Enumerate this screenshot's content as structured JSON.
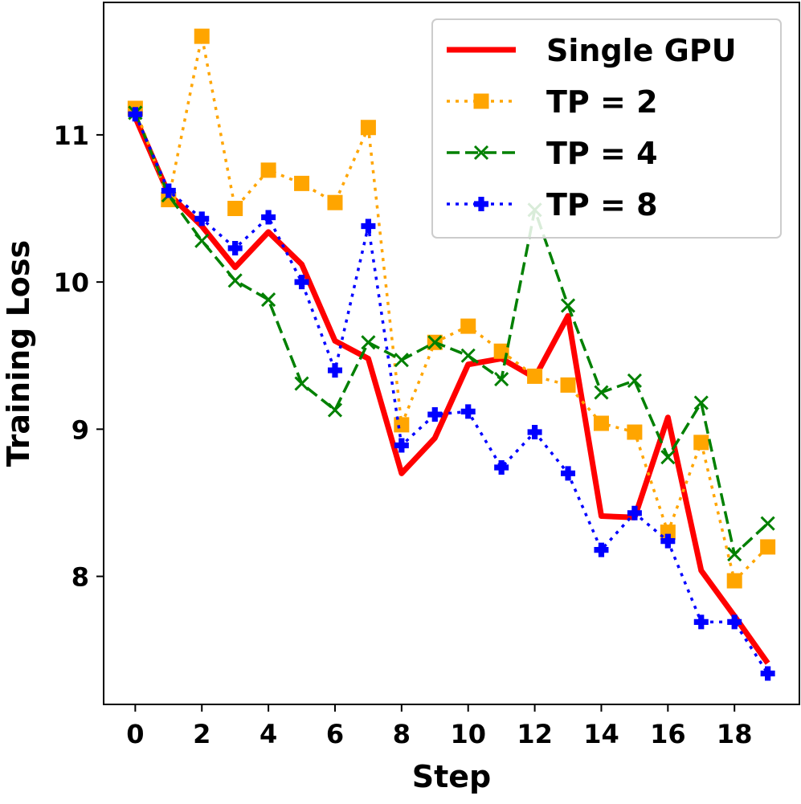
{
  "chart_data": {
    "type": "line",
    "title": "",
    "xlabel": "Step",
    "ylabel": "Training Loss",
    "xlim": [
      -0.95,
      19.95
    ],
    "ylim": [
      7.13,
      11.9
    ],
    "xticks": [
      0,
      2,
      4,
      6,
      8,
      10,
      12,
      14,
      16,
      18
    ],
    "xtick_labels": [
      "0",
      "2",
      "4",
      "6",
      "8",
      "10",
      "12",
      "14",
      "16",
      "18"
    ],
    "yticks": [
      8,
      9,
      10,
      11
    ],
    "ytick_labels": [
      "8",
      "9",
      "10",
      "11"
    ],
    "grid": false,
    "legend_position": "upper right",
    "x": [
      0,
      1,
      2,
      3,
      4,
      5,
      6,
      7,
      8,
      9,
      10,
      11,
      12,
      13,
      14,
      15,
      16,
      17,
      18,
      19
    ],
    "series": [
      {
        "name": "Single GPU",
        "color": "#ff0000",
        "line_style": "solid",
        "marker": "none",
        "values": [
          11.12,
          10.6,
          10.38,
          10.1,
          10.34,
          10.12,
          9.6,
          9.48,
          8.7,
          8.94,
          9.44,
          9.48,
          9.35,
          9.77,
          8.41,
          8.4,
          9.08,
          8.04,
          7.73,
          7.41
        ]
      },
      {
        "name": "TP = 2",
        "color": "#ffa500",
        "line_style": "dotted",
        "marker": "square",
        "values": [
          11.18,
          10.56,
          11.67,
          10.5,
          10.76,
          10.67,
          10.54,
          11.05,
          9.03,
          9.59,
          9.7,
          9.53,
          9.36,
          9.3,
          9.04,
          8.98,
          8.3,
          8.91,
          7.97,
          8.2
        ]
      },
      {
        "name": "TP = 4",
        "color": "#008000",
        "line_style": "dashed",
        "marker": "x",
        "values": [
          11.15,
          10.59,
          10.28,
          10.01,
          9.88,
          9.31,
          9.13,
          9.59,
          9.47,
          9.59,
          9.5,
          9.34,
          10.49,
          9.84,
          9.25,
          9.33,
          8.81,
          9.18,
          8.15,
          8.36
        ]
      },
      {
        "name": "TP = 8",
        "color": "#0000ff",
        "line_style": "dotted",
        "marker": "plus-filled",
        "values": [
          11.14,
          10.62,
          10.43,
          10.23,
          10.44,
          10.0,
          9.4,
          10.38,
          8.89,
          9.1,
          9.12,
          8.74,
          8.98,
          8.7,
          8.18,
          8.43,
          8.24,
          7.69,
          7.69,
          7.34
        ]
      }
    ]
  }
}
